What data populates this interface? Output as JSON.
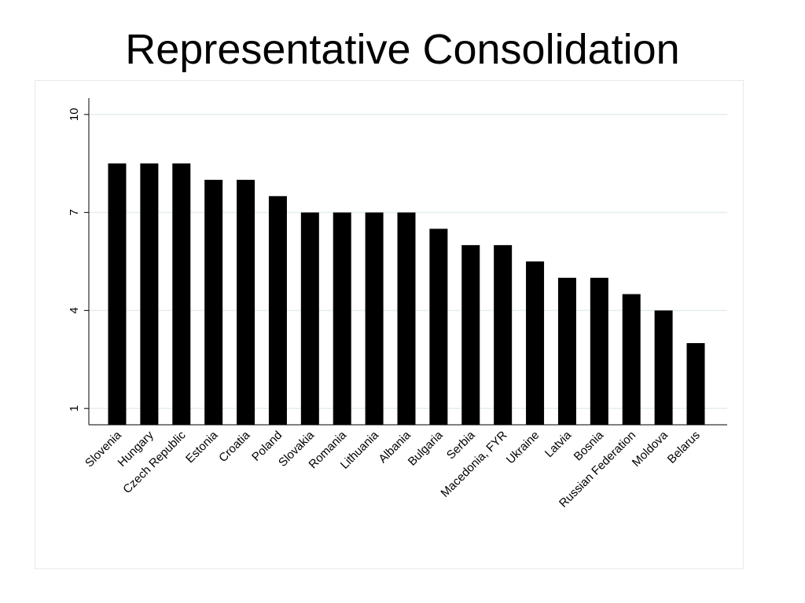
{
  "slide": {
    "title": "Representative Consolidation"
  },
  "chart_data": {
    "type": "bar",
    "title": "",
    "xlabel": "",
    "ylabel": "",
    "categories": [
      "Slovenia",
      "Hungary",
      "Czech Republic",
      "Estonia",
      "Croatia",
      "Poland",
      "Slovakia",
      "Romania",
      "Lithuania",
      "Albania",
      "Bulgaria",
      "Serbia",
      "Macedonia, FYR",
      "Ukraine",
      "Latvia",
      "Bosnia",
      "Russian Federation",
      "Moldova",
      "Belarus"
    ],
    "values": [
      8.5,
      8.5,
      8.5,
      8.0,
      8.0,
      7.5,
      7.0,
      7.0,
      7.0,
      7.0,
      6.5,
      6.0,
      6.0,
      5.5,
      5.0,
      5.0,
      4.5,
      4.0,
      3.0
    ],
    "yticks": [
      1,
      4,
      7,
      10
    ],
    "ylim": [
      0.5,
      10.5
    ],
    "grid": true,
    "legend": "none",
    "bar_color": "#000000",
    "grid_color": "#e6eeee"
  }
}
